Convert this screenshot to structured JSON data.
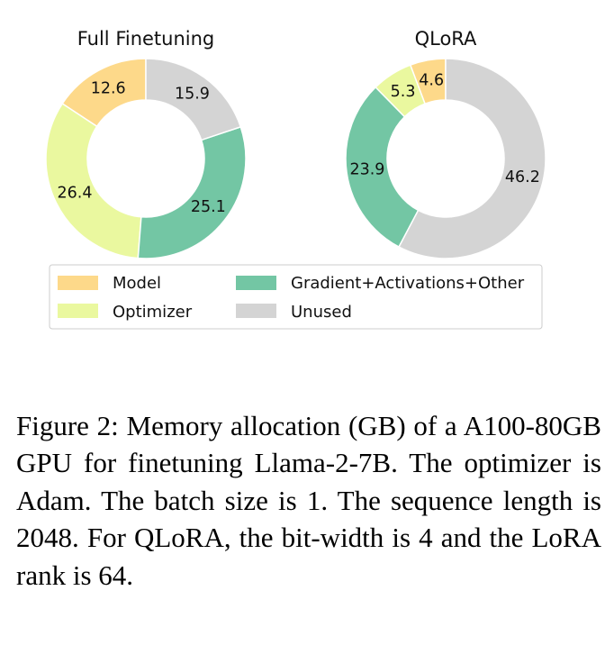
{
  "chart_data": [
    {
      "type": "pie",
      "title": "Full Finetuning",
      "categories": [
        "Model",
        "Optimizer",
        "Gradient+Activations+Other",
        "Unused"
      ],
      "values": [
        12.6,
        26.4,
        25.1,
        15.9
      ],
      "labels": [
        "12.6",
        "26.4",
        "25.1",
        "15.9"
      ],
      "donut": true
    },
    {
      "type": "pie",
      "title": "QLoRA",
      "categories": [
        "Model",
        "Optimizer",
        "Gradient+Activations+Other",
        "Unused"
      ],
      "values": [
        4.6,
        5.3,
        23.9,
        46.2
      ],
      "labels": [
        "4.6",
        "5.3",
        "23.9",
        "46.2"
      ],
      "donut": true
    }
  ],
  "legend": {
    "placement": "bottom",
    "items": [
      {
        "label": "Model",
        "color": "#fdd98a"
      },
      {
        "label": "Optimizer",
        "color": "#eaf89f"
      },
      {
        "label": "Gradient+Activations+Other",
        "color": "#73c6a4"
      },
      {
        "label": "Unused",
        "color": "#d4d4d4"
      }
    ]
  },
  "caption": "Figure 2: Memory allocation (GB) of a A100-80GB GPU for finetuning Llama-2-7B. The optimizer is Adam. The batch size is 1. The sequence length is 2048. For QLoRA, the bit-width is 4 and the LoRA rank is 64."
}
